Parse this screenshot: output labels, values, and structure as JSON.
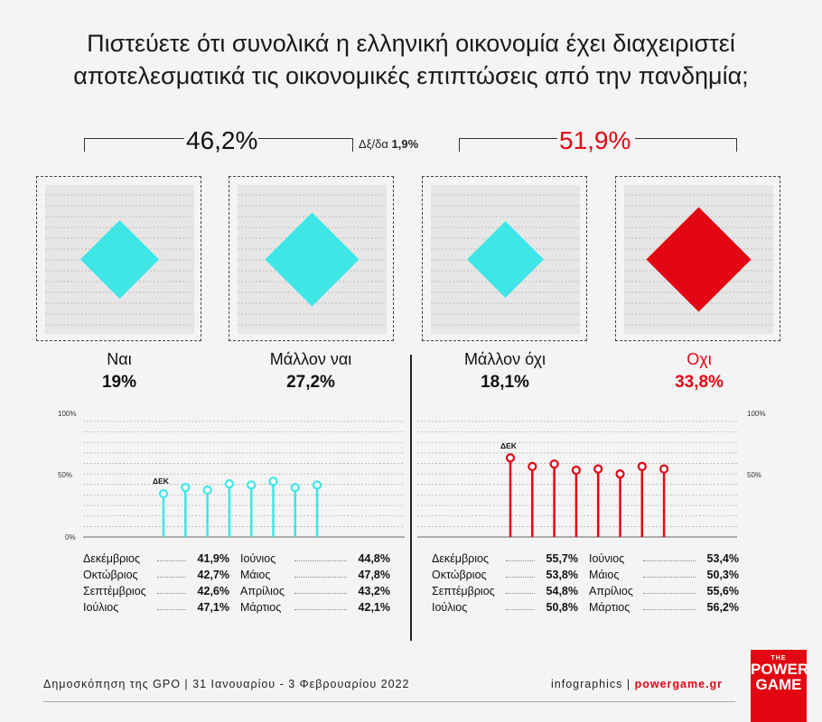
{
  "title_line1": "Πιστεύετε ότι συνολικά η ελληνική οικονομία έχει διαχειριστεί",
  "title_line2": "αποτελεσματικά τις οικονομικές επιπτώσεις από την πανδημία;",
  "total_positive": "46,2%",
  "total_negative": "51,9%",
  "undecided_label": "Δξ/δα",
  "undecided_value": "1,9%",
  "colors": {
    "positive": "#3ee6e6",
    "negative": "#e30613",
    "text": "#111111"
  },
  "chart_data": [
    {
      "type": "bar",
      "categories": [
        "Ναι",
        "Μάλλον ναι",
        "Μάλλον όχι",
        "Οχι"
      ],
      "values": [
        19,
        27.2,
        18.1,
        33.8
      ],
      "value_labels": [
        "19%",
        "27,2%",
        "18,1%",
        "33,8%"
      ],
      "marks": "diamonds"
    },
    {
      "type": "line",
      "ylim": [
        0,
        100
      ],
      "yticks": [
        "100%",
        "50%",
        "0%"
      ],
      "series": [
        {
          "name": "",
          "annotation": "ΔΕΚ",
          "values": [
            35,
            40,
            38,
            43,
            42,
            45,
            40,
            42
          ]
        },
        {
          "name": "",
          "annotation": "ΔΕΚ",
          "values": [
            64,
            57,
            59,
            54,
            55,
            51,
            57,
            55
          ]
        }
      ]
    }
  ],
  "history_left": [
    {
      "month": "Δεκέμβριος",
      "value": "41,9%"
    },
    {
      "month": "Ιούνιος",
      "value": "44,8%"
    },
    {
      "month": "Οκτώβριος",
      "value": "42,7%"
    },
    {
      "month": "Μάιος",
      "value": "47,8%"
    },
    {
      "month": "Σεπτέμβριος",
      "value": "42,6%"
    },
    {
      "month": "Απρίλιος",
      "value": "43,2%"
    },
    {
      "month": "Ιούλιος",
      "value": "47,1%"
    },
    {
      "month": "Μάρτιος",
      "value": "42,1%"
    }
  ],
  "history_right": [
    {
      "month": "Δεκέμβριος",
      "value": "55,7%"
    },
    {
      "month": "Ιούνιος",
      "value": "53,4%"
    },
    {
      "month": "Οκτώβριος",
      "value": "53,8%"
    },
    {
      "month": "Μάιος",
      "value": "50,3%"
    },
    {
      "month": "Σεπτέμβριος",
      "value": "54,8%"
    },
    {
      "month": "Απρίλιος",
      "value": "55,6%"
    },
    {
      "month": "Ιούλιος",
      "value": "50,8%"
    },
    {
      "month": "Μάρτιος",
      "value": "56,2%"
    }
  ],
  "footer_source": "Δημοσκόπηση της GPO | 31 Ιανουαρίου - 3 Φεβρουαρίου 2022",
  "footer_credit": "infographics | ",
  "footer_brand": "powergame.gr",
  "logo": {
    "the": "THE",
    "line1": "POWER",
    "line2": "GAME"
  }
}
